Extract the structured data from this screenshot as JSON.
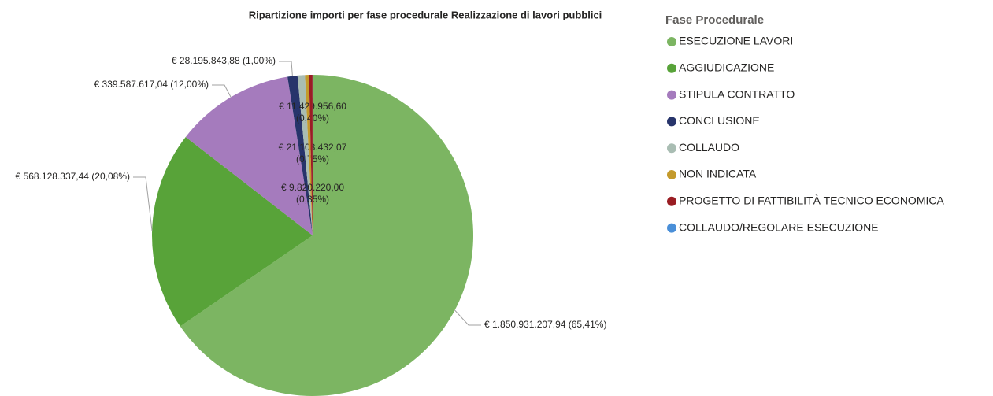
{
  "chart_data": {
    "type": "pie",
    "title": "Ripartizione importi per fase procedurale Realizzazione di lavori pubblici",
    "legend_title": "Fase Procedurale",
    "categories": [
      "ESECUZIONE LAVORI",
      "AGGIUDICAZIONE",
      "STIPULA CONTRATTO",
      "CONCLUSIONE",
      "COLLAUDO",
      "NON INDICATA",
      "PROGETTO DI FATTIBILITÀ TECNICO ECONOMICA",
      "COLLAUDO/REGOLARE ESECUZIONE"
    ],
    "values": [
      1850931207.94,
      568128337.44,
      339587617.04,
      28195843.88,
      21108432.07,
      11429956.6,
      9820220.0,
      200000
    ],
    "value_labels": [
      "€ 1.850.931.207,94 (65,41%)",
      "€ 568.128.337,44 (20,08%)",
      "€ 339.587.617,04 (12,00%)",
      "€ 28.195.843,88 (1,00%)",
      "€ 21.108.432,07 (0,75%)",
      "€ 11.429.956,60 (0,40%)",
      "€ 9.820.220,00 (0,35%)",
      null
    ],
    "colors": [
      "#7cb562",
      "#58a339",
      "#a57bbd",
      "#27346b",
      "#a9bdb3",
      "#c49a2c",
      "#9a1d23",
      "#4a8fd8"
    ],
    "legend": "right"
  }
}
